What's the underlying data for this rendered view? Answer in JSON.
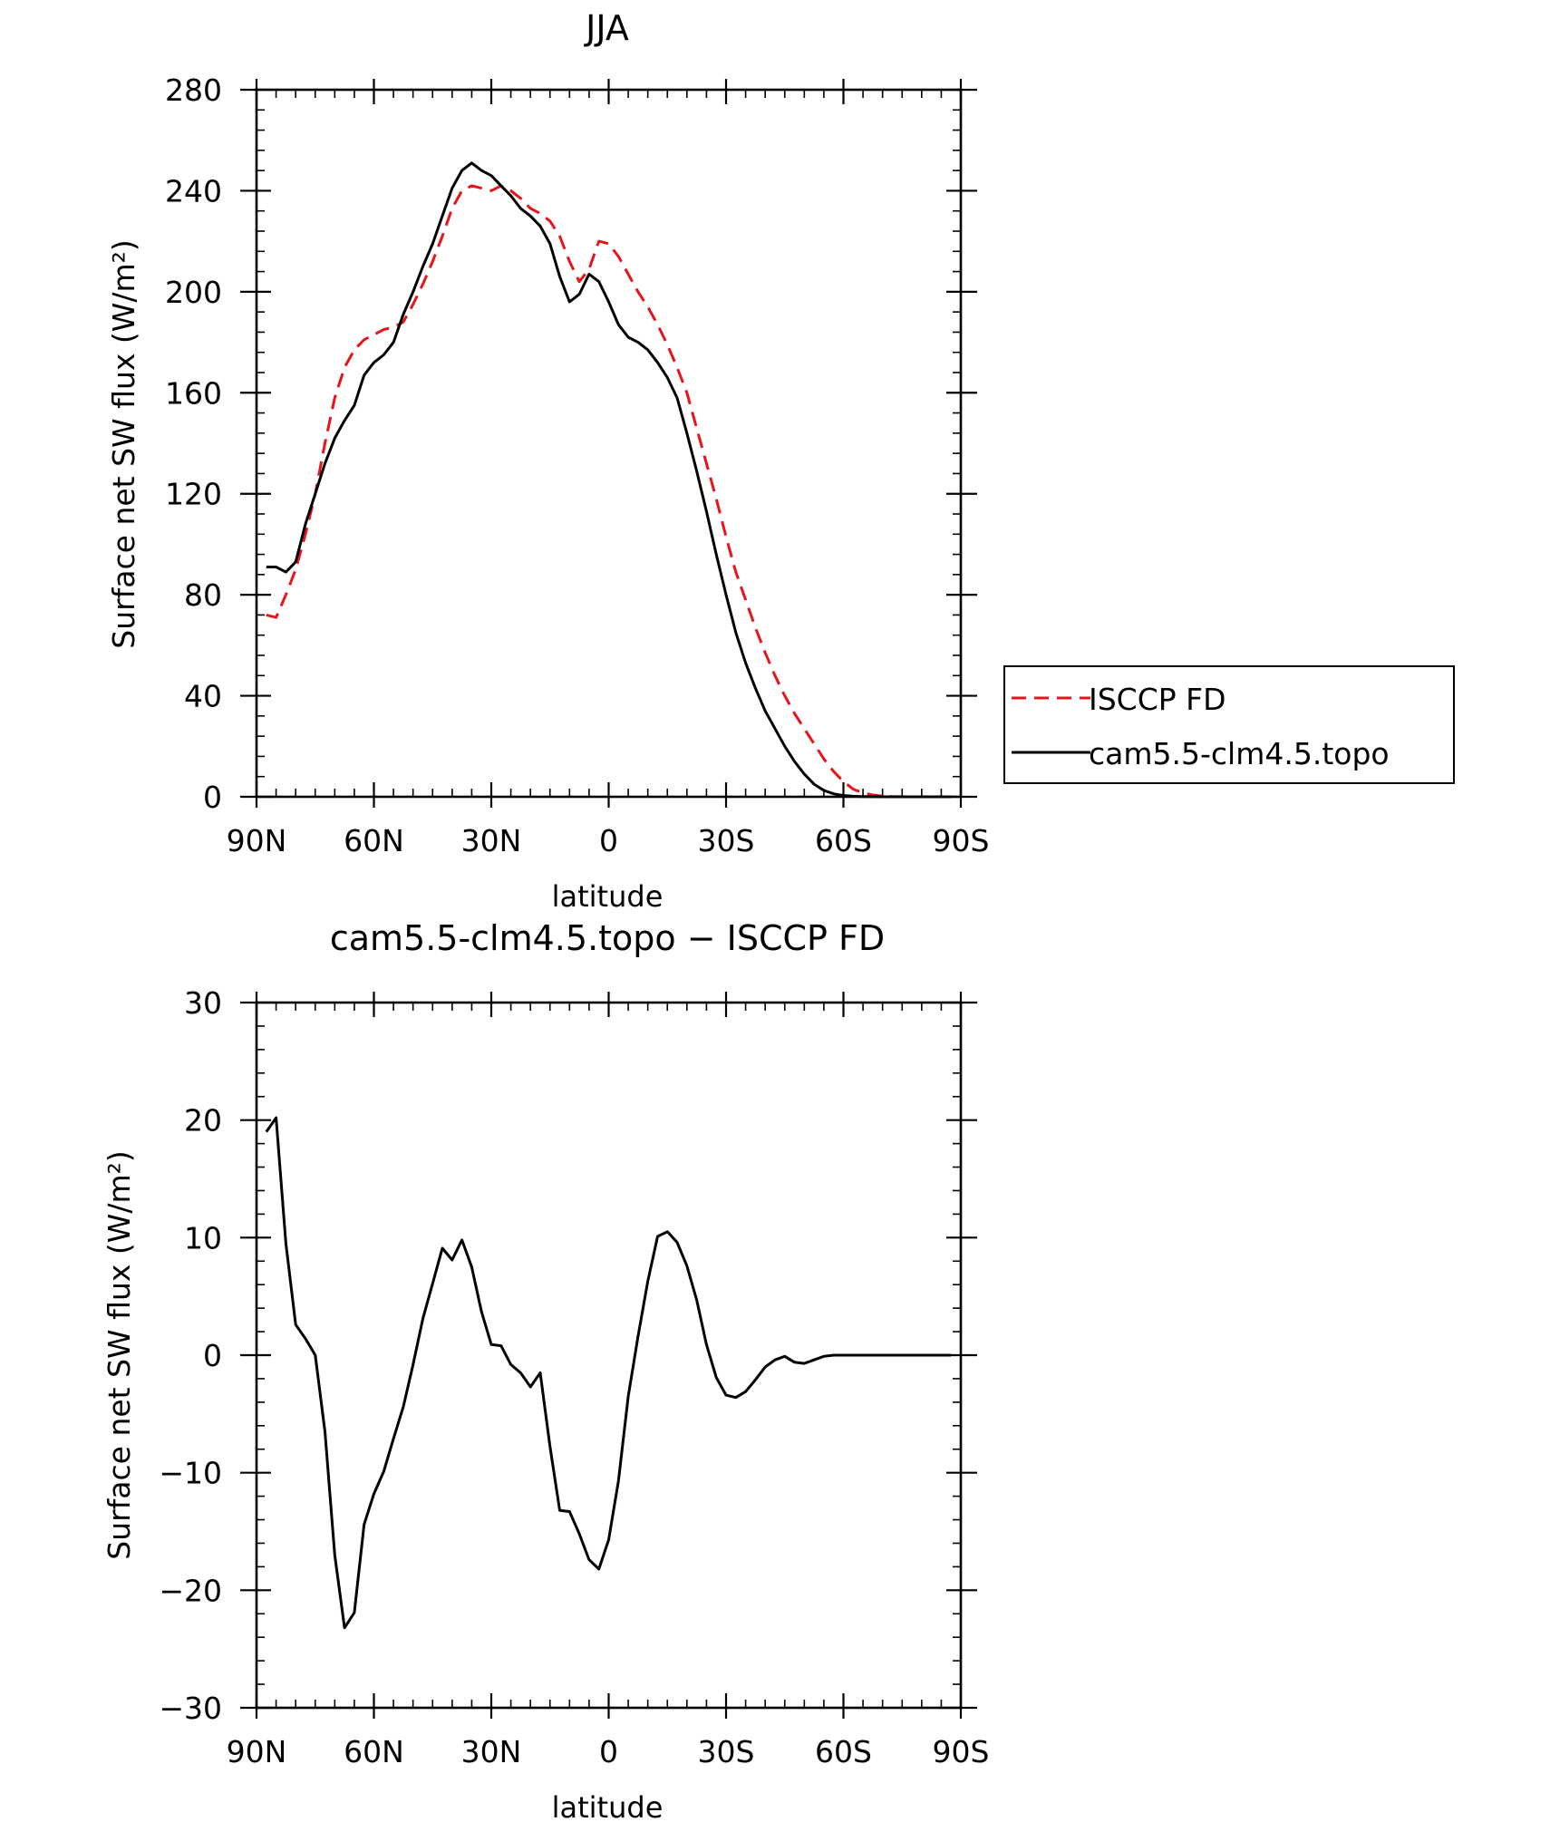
{
  "chart_data": [
    {
      "type": "line",
      "title": "JJA",
      "xlabel": "latitude",
      "ylabel": "Surface net SW flux (W/m²)",
      "xlim": [
        90,
        -90
      ],
      "ylim": [
        0,
        280
      ],
      "xticks": [
        90,
        60,
        30,
        0,
        -30,
        -60,
        -90
      ],
      "xtick_labels": [
        "90N",
        "60N",
        "30N",
        "0",
        "30S",
        "60S",
        "90S"
      ],
      "yticks": [
        0,
        40,
        80,
        120,
        160,
        200,
        240,
        280
      ],
      "ytick_labels": [
        "0",
        "40",
        "80",
        "120",
        "160",
        "200",
        "240",
        "280"
      ],
      "grid": false,
      "legend": "right",
      "series": [
        {
          "name": "ISCCP FD",
          "color": "#e8141b",
          "dash": true,
          "x": [
            87.5,
            85,
            82.5,
            80,
            77.5,
            75,
            72.5,
            70,
            67.5,
            65,
            62.5,
            60,
            57.5,
            55,
            52.5,
            50,
            47.5,
            45,
            42.5,
            40,
            37.5,
            35,
            32.5,
            30,
            27.5,
            25,
            22.5,
            20,
            17.5,
            15,
            12.5,
            10,
            7.5,
            5,
            2.5,
            0,
            -2.5,
            -5,
            -7.5,
            -10,
            -12.5,
            -15,
            -17.5,
            -20,
            -22.5,
            -25,
            -27.5,
            -30,
            -32.5,
            -35,
            -37.5,
            -40,
            -42.5,
            -45,
            -47.5,
            -50,
            -52.5,
            -55,
            -57.5,
            -60,
            -62.5,
            -65,
            -67.5,
            -70,
            -72.5,
            -75,
            -77.5,
            -80,
            -82.5,
            -85,
            -87.5
          ],
          "values": [
            72,
            71,
            80,
            90,
            104,
            120,
            140,
            158,
            170,
            177,
            181,
            183,
            185,
            186,
            188,
            195,
            203,
            212,
            222,
            233,
            240,
            242,
            241,
            240,
            242,
            240,
            237,
            233,
            231,
            228,
            222,
            212,
            204,
            209,
            220,
            219,
            214,
            207,
            200,
            194,
            187,
            179,
            170,
            160,
            146,
            132,
            118,
            103,
            89,
            78,
            67,
            57,
            48,
            40,
            33,
            27,
            21,
            15,
            10,
            6,
            3,
            1.5,
            0.7,
            0.3,
            0.1,
            0.05,
            0,
            0,
            0,
            0,
            0
          ]
        },
        {
          "name": "cam5.5-clm4.5.topo",
          "color": "#000000",
          "dash": false,
          "x": [
            87.5,
            85,
            82.5,
            80,
            77.5,
            75,
            72.5,
            70,
            67.5,
            65,
            62.5,
            60,
            57.5,
            55,
            52.5,
            50,
            47.5,
            45,
            42.5,
            40,
            37.5,
            35,
            32.5,
            30,
            27.5,
            25,
            22.5,
            20,
            17.5,
            15,
            12.5,
            10,
            7.5,
            5,
            2.5,
            0,
            -2.5,
            -5,
            -7.5,
            -10,
            -12.5,
            -15,
            -17.5,
            -20,
            -22.5,
            -25,
            -27.5,
            -30,
            -32.5,
            -35,
            -37.5,
            -40,
            -42.5,
            -45,
            -47.5,
            -50,
            -52.5,
            -55,
            -57.5,
            -60,
            -62.5,
            -65,
            -67.5,
            -70,
            -72.5,
            -75,
            -77.5,
            -80,
            -82.5,
            -85,
            -87.5
          ],
          "values": [
            91,
            91,
            89,
            93,
            108,
            120,
            132,
            142,
            149,
            155,
            167,
            172,
            175,
            180,
            191,
            200,
            210,
            219,
            230,
            241,
            248,
            251,
            248,
            246,
            242,
            238,
            233,
            230,
            226,
            219,
            206,
            196,
            199,
            207,
            204,
            196,
            187,
            182,
            180,
            177,
            172,
            166,
            158,
            144,
            129,
            113,
            96,
            80,
            65,
            53,
            43,
            34,
            27,
            20,
            14,
            9,
            5,
            2.5,
            1.2,
            0.5,
            0.2,
            0.1,
            0.05,
            0,
            0,
            0,
            0,
            0,
            0,
            0,
            0
          ]
        }
      ]
    },
    {
      "type": "line",
      "title": "cam5.5-clm4.5.topo − ISCCP FD",
      "xlabel": "latitude",
      "ylabel": "Surface net SW flux (W/m²)",
      "xlim": [
        90,
        -90
      ],
      "ylim": [
        -30,
        30
      ],
      "xticks": [
        90,
        60,
        30,
        0,
        -30,
        -60,
        -90
      ],
      "xtick_labels": [
        "90N",
        "60N",
        "30N",
        "0",
        "30S",
        "60S",
        "90S"
      ],
      "yticks": [
        -30,
        -20,
        -10,
        0,
        10,
        20,
        30
      ],
      "ytick_labels": [
        "−30",
        "−20",
        "−10",
        "0",
        "10",
        "20",
        "30"
      ],
      "grid": false,
      "series": [
        {
          "color": "#000000",
          "dash": false,
          "x": [
            87.5,
            85,
            82.5,
            80,
            77.5,
            75,
            72.5,
            70,
            67.5,
            65,
            62.5,
            60,
            57.5,
            55,
            52.5,
            50,
            47.5,
            45,
            42.5,
            40,
            37.5,
            35,
            32.5,
            30,
            27.5,
            25,
            22.5,
            20,
            17.5,
            15,
            12.5,
            10,
            7.5,
            5,
            2.5,
            0,
            -2.5,
            -5,
            -7.5,
            -10,
            -12.5,
            -15,
            -17.5,
            -20,
            -22.5,
            -25,
            -27.5,
            -30,
            -32.5,
            -35,
            -37.5,
            -40,
            -42.5,
            -45,
            -47.5,
            -50,
            -52.5,
            -55,
            -57.5,
            -60,
            -62.5,
            -65,
            -67.5,
            -70,
            -72.5,
            -75,
            -77.5,
            -80,
            -82.5,
            -85,
            -87.5
          ],
          "values": [
            19,
            20.2,
            9.5,
            2.6,
            1.4,
            0,
            -6.5,
            -17,
            -23.2,
            -21.9,
            -14.4,
            -11.8,
            -9.9,
            -7.1,
            -4.4,
            -0.8,
            3.1,
            6.1,
            9.1,
            8.1,
            9.8,
            7.5,
            3.7,
            0.9,
            0.8,
            -0.8,
            -1.5,
            -2.7,
            -1.5,
            -7.8,
            -13.2,
            -13.3,
            -15.2,
            -17.4,
            -18.2,
            -15.7,
            -10.7,
            -3.5,
            1.6,
            6.3,
            10.1,
            10.5,
            9.6,
            7.6,
            4.7,
            0.9,
            -1.9,
            -3.4,
            -3.6,
            -3.1,
            -2.1,
            -1,
            -0.4,
            -0.1,
            -0.6,
            -0.7,
            -0.4,
            -0.1,
            0,
            0,
            0,
            0,
            0,
            0,
            0,
            0,
            0,
            0,
            0,
            0,
            0
          ]
        }
      ]
    }
  ]
}
